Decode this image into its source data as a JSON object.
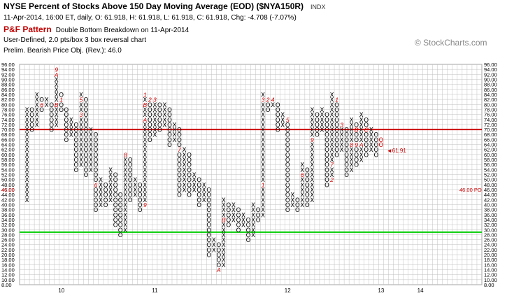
{
  "header": {
    "title": "NYSE Percent of Stocks Above 150 Day Moving Average (EOD) ($NYA150R)",
    "exchange": "INDX",
    "quote": "11-Apr-2014, 16:00 ET, daily, O: 61.918, H: 61.918, L: 61.918, C: 61.918, Chg: -4.708 (-7.07%)",
    "pf_label": "P&F Pattern",
    "pattern_signal": "Double Bottom Breakdown on 11-Apr-2014",
    "box_info": "User-Defined, 2.0 pts/box 3 box reversal chart",
    "price_objective": "Prelim. Bearish Price Obj. (Rev.): 46.0"
  },
  "watermark": "© StockCharts.com",
  "colors": {
    "x_mark": "#000000",
    "o_mark": "#000000",
    "month_marker": "#cc0000",
    "resistance_line": "#cc0000",
    "support_line": "#00cc00",
    "price_objective": "#cc0000",
    "grid": "#c0c0c0"
  },
  "chart_data": {
    "type": "point-and-figure",
    "box_size": 2.0,
    "reversal": 3,
    "y_min": 8.0,
    "y_max": 96.0,
    "y_ticks": [
      "96.00",
      "94.00",
      "92.00",
      "90.00",
      "88.00",
      "86.00",
      "84.00",
      "82.00",
      "80.00",
      "78.00",
      "76.00",
      "74.00",
      "72.00",
      "70.00",
      "68.00",
      "66.00",
      "64.00",
      "62.00",
      "60.00",
      "58.00",
      "56.00",
      "54.00",
      "52.00",
      "50.00",
      "48.00",
      "46.00",
      "44.00",
      "42.00",
      "40.00",
      "38.00",
      "36.00",
      "34.00",
      "32.00",
      "30.00",
      "28.00",
      "26.00",
      "24.00",
      "22.00",
      "20.00",
      "18.00",
      "16.00",
      "14.00",
      "12.00",
      "10.00",
      "8.00"
    ],
    "x_labels": [
      "10",
      "11",
      "12",
      "13",
      "14"
    ],
    "x_label_columns": [
      7,
      26,
      53,
      72,
      80
    ],
    "horizontal_lines": [
      {
        "label": "resistance",
        "value": 70.0,
        "color": "#cc0000"
      },
      {
        "label": "support",
        "value": 29.0,
        "color": "#00cc00"
      }
    ],
    "last_price_label": "61.91",
    "last_price_value": 61.918,
    "price_objective_label": "46.00 PO",
    "price_objective_value": 46.0,
    "price_objective_axis_label": "46.00",
    "columns": [
      {
        "type": "X",
        "low": 42,
        "high": 78
      },
      {
        "type": "O",
        "low": 70,
        "high": 78
      },
      {
        "type": "X",
        "low": 72,
        "high": 84
      },
      {
        "type": "O",
        "low": 78,
        "high": 82
      },
      {
        "type": "X",
        "low": 80,
        "high": 82
      },
      {
        "type": "O",
        "low": 70,
        "high": 80
      },
      {
        "type": "X",
        "low": 72,
        "high": 94
      },
      {
        "type": "O",
        "low": 78,
        "high": 84
      },
      {
        "type": "O",
        "low": 66,
        "high": 78
      },
      {
        "type": "X",
        "low": 68,
        "high": 74
      },
      {
        "type": "O",
        "low": 54,
        "high": 72
      },
      {
        "type": "X",
        "low": 56,
        "high": 84
      },
      {
        "type": "O",
        "low": 52,
        "high": 82
      },
      {
        "type": "X",
        "low": 54,
        "high": 70
      },
      {
        "type": "O",
        "low": 38,
        "high": 68
      },
      {
        "type": "X",
        "low": 40,
        "high": 50
      },
      {
        "type": "O",
        "low": 40,
        "high": 48
      },
      {
        "type": "X",
        "low": 42,
        "high": 54
      },
      {
        "type": "O",
        "low": 32,
        "high": 52
      },
      {
        "type": "O",
        "low": 28,
        "high": 44
      },
      {
        "type": "X",
        "low": 30,
        "high": 60
      },
      {
        "type": "O",
        "low": 42,
        "high": 58
      },
      {
        "type": "X",
        "low": 44,
        "high": 50
      },
      {
        "type": "O",
        "low": 38,
        "high": 48
      },
      {
        "type": "X",
        "low": 40,
        "high": 84
      },
      {
        "type": "O",
        "low": 66,
        "high": 82
      },
      {
        "type": "X",
        "low": 68,
        "high": 82
      },
      {
        "type": "O",
        "low": 70,
        "high": 80
      },
      {
        "type": "X",
        "low": 72,
        "high": 80
      },
      {
        "type": "O",
        "low": 64,
        "high": 78
      },
      {
        "type": "X",
        "low": 66,
        "high": 72
      },
      {
        "type": "O",
        "low": 44,
        "high": 70
      },
      {
        "type": "X",
        "low": 46,
        "high": 62
      },
      {
        "type": "O",
        "low": 44,
        "high": 60
      },
      {
        "type": "X",
        "low": 46,
        "high": 52
      },
      {
        "type": "O",
        "low": 40,
        "high": 50
      },
      {
        "type": "X",
        "low": 42,
        "high": 48
      },
      {
        "type": "O",
        "low": 20,
        "high": 46
      },
      {
        "type": "X",
        "low": 22,
        "high": 26
      },
      {
        "type": "O",
        "low": 14,
        "high": 24
      },
      {
        "type": "X",
        "low": 16,
        "high": 42
      },
      {
        "type": "O",
        "low": 32,
        "high": 40
      },
      {
        "type": "X",
        "low": 34,
        "high": 40
      },
      {
        "type": "O",
        "low": 30,
        "high": 38
      },
      {
        "type": "X",
        "low": 32,
        "high": 36
      },
      {
        "type": "O",
        "low": 26,
        "high": 34
      },
      {
        "type": "X",
        "low": 28,
        "high": 40
      },
      {
        "type": "O",
        "low": 34,
        "high": 38
      },
      {
        "type": "X",
        "low": 36,
        "high": 84
      },
      {
        "type": "O",
        "low": 78,
        "high": 82
      },
      {
        "type": "X",
        "low": 80,
        "high": 82
      },
      {
        "type": "O",
        "low": 70,
        "high": 80
      },
      {
        "type": "X",
        "low": 72,
        "high": 76
      },
      {
        "type": "O",
        "low": 38,
        "high": 74
      },
      {
        "type": "X",
        "low": 40,
        "high": 44
      },
      {
        "type": "O",
        "low": 38,
        "high": 42
      },
      {
        "type": "X",
        "low": 40,
        "high": 56
      },
      {
        "type": "O",
        "low": 40,
        "high": 54
      },
      {
        "type": "X",
        "low": 42,
        "high": 78
      },
      {
        "type": "O",
        "low": 68,
        "high": 76
      },
      {
        "type": "X",
        "low": 70,
        "high": 78
      },
      {
        "type": "O",
        "low": 48,
        "high": 76
      },
      {
        "type": "X",
        "low": 50,
        "high": 84
      },
      {
        "type": "O",
        "low": 60,
        "high": 82
      },
      {
        "type": "X",
        "low": 62,
        "high": 72
      },
      {
        "type": "O",
        "low": 52,
        "high": 70
      },
      {
        "type": "X",
        "low": 54,
        "high": 74
      },
      {
        "type": "O",
        "low": 56,
        "high": 72
      },
      {
        "type": "X",
        "low": 58,
        "high": 76
      },
      {
        "type": "O",
        "low": 60,
        "high": 74
      },
      {
        "type": "X",
        "low": 62,
        "high": 70
      },
      {
        "type": "O",
        "low": 60,
        "high": 68
      }
    ],
    "month_markers": [
      {
        "col": 1,
        "value": 66,
        "label": "5"
      },
      {
        "col": 3,
        "value": 80,
        "label": "6"
      },
      {
        "col": 6,
        "value": 94,
        "label": "9"
      },
      {
        "col": 6,
        "value": 92,
        "label": "A"
      },
      {
        "col": 6,
        "value": 80,
        "label": "B"
      },
      {
        "col": 7,
        "value": 82,
        "label": "1"
      },
      {
        "col": 10,
        "value": 84,
        "label": "4"
      },
      {
        "col": 11,
        "value": 82,
        "label": "5"
      },
      {
        "col": 11,
        "value": 76,
        "label": "3"
      },
      {
        "col": 14,
        "value": 48,
        "label": "6"
      },
      {
        "col": 20,
        "value": 60,
        "label": "8"
      },
      {
        "col": 18,
        "value": 28,
        "label": "7"
      },
      {
        "col": 24,
        "value": 84,
        "label": "1"
      },
      {
        "col": 24,
        "value": 80,
        "label": "B"
      },
      {
        "col": 24,
        "value": 74,
        "label": "A"
      },
      {
        "col": 24,
        "value": 40,
        "label": "9"
      },
      {
        "col": 25,
        "value": 82,
        "label": "2"
      },
      {
        "col": 26,
        "value": 82,
        "label": "3"
      },
      {
        "col": 27,
        "value": 82,
        "label": "4"
      },
      {
        "col": 29,
        "value": 80,
        "label": "5"
      },
      {
        "col": 33,
        "value": 68,
        "label": "6"
      },
      {
        "col": 31,
        "value": 62,
        "label": "7"
      },
      {
        "col": 32,
        "value": 38,
        "label": "8"
      },
      {
        "col": 39,
        "value": 14,
        "label": "A"
      },
      {
        "col": 40,
        "value": 34,
        "label": "B"
      },
      {
        "col": 40,
        "value": 44,
        "label": "9"
      },
      {
        "col": 48,
        "value": 82,
        "label": "3"
      },
      {
        "col": 48,
        "value": 48,
        "label": "1"
      },
      {
        "col": 49,
        "value": 82,
        "label": "2"
      },
      {
        "col": 50,
        "value": 82,
        "label": "4"
      },
      {
        "col": 53,
        "value": 74,
        "label": "5"
      },
      {
        "col": 56,
        "value": 52,
        "label": "6"
      },
      {
        "col": 59,
        "value": 48,
        "label": "8"
      },
      {
        "col": 58,
        "value": 66,
        "label": "9"
      },
      {
        "col": 59,
        "value": 66,
        "label": "A"
      },
      {
        "col": 60,
        "value": 66,
        "label": "B"
      },
      {
        "col": 62,
        "value": 50,
        "label": "2"
      },
      {
        "col": 62,
        "value": 56,
        "label": "7"
      },
      {
        "col": 63,
        "value": 82,
        "label": "1"
      },
      {
        "col": 64,
        "value": 80,
        "label": "2"
      },
      {
        "col": 64,
        "value": 72,
        "label": "3"
      },
      {
        "col": 64,
        "value": 78,
        "label": "5"
      },
      {
        "col": 66,
        "value": 64,
        "label": "8"
      },
      {
        "col": 67,
        "value": 64,
        "label": "9"
      },
      {
        "col": 68,
        "value": 64,
        "label": "A"
      },
      {
        "col": 67,
        "value": 70,
        "label": "B"
      },
      {
        "col": 69,
        "value": 70,
        "label": "C"
      },
      {
        "col": 71,
        "value": 76,
        "label": "3"
      },
      {
        "col": 71,
        "value": 70,
        "label": "4"
      }
    ],
    "projected_marks": [
      {
        "col": 72,
        "value": 66,
        "label": "O"
      },
      {
        "col": 72,
        "value": 64,
        "label": "O"
      }
    ]
  }
}
